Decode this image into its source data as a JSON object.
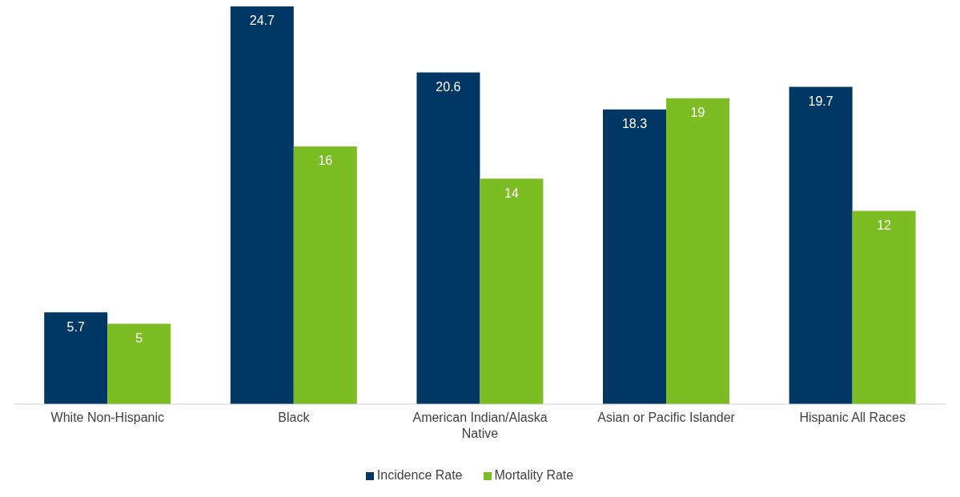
{
  "chart_data": {
    "type": "bar",
    "categories": [
      "White Non-Hispanic",
      "Black",
      "American Indian/Alaska Native",
      "Asian or Pacific Islander",
      "Hispanic All Races"
    ],
    "series": [
      {
        "name": "Incidence Rate",
        "color": "#003764",
        "values": [
          5.7,
          24.7,
          20.6,
          18.3,
          19.7
        ]
      },
      {
        "name": "Mortality Rate",
        "color": "#7cbd23",
        "values": [
          5,
          16,
          14,
          19,
          12
        ]
      }
    ],
    "data_labels": true,
    "legend": "bottom",
    "grid": false
  }
}
